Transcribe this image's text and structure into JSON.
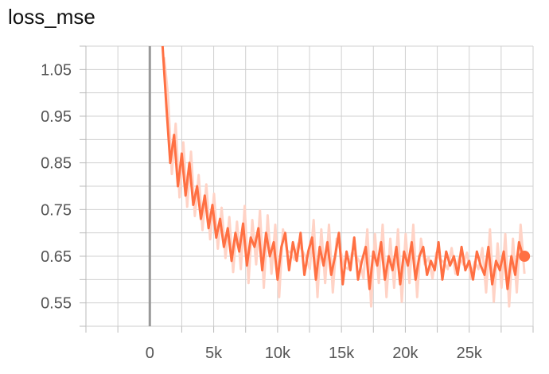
{
  "chart_data": {
    "type": "line",
    "title": "loss_mse",
    "xlabel": "",
    "ylabel": "",
    "xlim": [
      -5000,
      30000
    ],
    "ylim": [
      0.5,
      1.1
    ],
    "x_ticks": [
      {
        "value": 0,
        "label": "0"
      },
      {
        "value": 5000,
        "label": "5k"
      },
      {
        "value": 10000,
        "label": "10k"
      },
      {
        "value": 15000,
        "label": "15k"
      },
      {
        "value": 20000,
        "label": "20k"
      },
      {
        "value": 25000,
        "label": "25k"
      }
    ],
    "y_ticks": [
      {
        "value": 0.55,
        "label": "0.55"
      },
      {
        "value": 0.65,
        "label": "0.65"
      },
      {
        "value": 0.75,
        "label": "0.75"
      },
      {
        "value": 0.85,
        "label": "0.85"
      },
      {
        "value": 0.95,
        "label": "0.95"
      },
      {
        "value": 1.05,
        "label": "1.05"
      }
    ],
    "grid": true,
    "colors": {
      "smoothed": "#ff7043",
      "raw": "#ffd3c6",
      "zero_line": "#999999",
      "grid": "#d0d0d0"
    },
    "series": [
      {
        "x": [
          1000,
          1300,
          1600,
          1900,
          2200,
          2500,
          2800,
          3100,
          3400,
          3700,
          4000,
          4300,
          4600,
          4900,
          5200,
          5500,
          5800,
          6100,
          6400,
          6700,
          7000,
          7300,
          7600,
          7900,
          8200,
          8500,
          8800,
          9100,
          9400,
          9700,
          10000,
          10300,
          10600,
          10900,
          11200,
          11500,
          11800,
          12100,
          12400,
          12700,
          13000,
          13300,
          13600,
          13900,
          14200,
          14500,
          14800,
          15100,
          15400,
          15700,
          16000,
          16300,
          16600,
          16900,
          17200,
          17500,
          17800,
          18100,
          18400,
          18700,
          19000,
          19300,
          19600,
          19900,
          20200,
          20500,
          20800,
          21100,
          21400,
          21700,
          22000,
          22300,
          22600,
          22900,
          23200,
          23500,
          23800,
          24100,
          24400,
          24700,
          25000,
          25300,
          25600,
          25900,
          26200,
          26500,
          26800,
          27100,
          27400,
          27700,
          28000,
          28300,
          28600,
          28900,
          29200
        ],
        "y": [
          1.1,
          0.97,
          0.85,
          0.91,
          0.8,
          0.87,
          0.78,
          0.85,
          0.76,
          0.8,
          0.73,
          0.78,
          0.71,
          0.76,
          0.69,
          0.73,
          0.67,
          0.71,
          0.64,
          0.7,
          0.66,
          0.72,
          0.63,
          0.69,
          0.67,
          0.71,
          0.62,
          0.7,
          0.65,
          0.68,
          0.6,
          0.67,
          0.7,
          0.62,
          0.68,
          0.64,
          0.7,
          0.61,
          0.66,
          0.69,
          0.6,
          0.67,
          0.63,
          0.68,
          0.61,
          0.65,
          0.7,
          0.59,
          0.66,
          0.62,
          0.69,
          0.6,
          0.64,
          0.67,
          0.58,
          0.66,
          0.63,
          0.68,
          0.6,
          0.65,
          0.62,
          0.67,
          0.59,
          0.66,
          0.63,
          0.68,
          0.6,
          0.65,
          0.67,
          0.61,
          0.64,
          0.62,
          0.68,
          0.6,
          0.66,
          0.63,
          0.65,
          0.61,
          0.67,
          0.62,
          0.64,
          0.6,
          0.66,
          0.63,
          0.61,
          0.67,
          0.59,
          0.64,
          0.62,
          0.66,
          0.58,
          0.65,
          0.61,
          0.68,
          0.65
        ]
      }
    ]
  }
}
